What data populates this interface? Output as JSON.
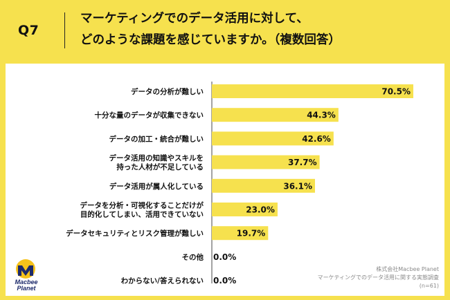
{
  "header": {
    "qnum": "Q7",
    "title_line1": "マーケティングでのデータ活用に対して、",
    "title_line2": "どのような課題を感じていますか。（複数回答）"
  },
  "chart_data": {
    "type": "bar",
    "orientation": "horizontal",
    "categories": [
      [
        "データの分析が難しい"
      ],
      [
        "十分な量のデータが収集できない"
      ],
      [
        "データの加工・統合が難しい"
      ],
      [
        "データ活用の知識やスキルを",
        "持った人材が不足している"
      ],
      [
        "データ活用が属人化している"
      ],
      [
        "データを分析・可視化することだけが",
        "目的化してしまい、活用できていない"
      ],
      [
        "データセキュリティとリスク管理が難しい"
      ],
      [
        "その他"
      ],
      [
        "わからない/答えられない"
      ]
    ],
    "values": [
      70.5,
      44.3,
      42.6,
      37.7,
      36.1,
      23.0,
      19.7,
      0.0,
      0.0
    ],
    "value_labels": [
      "70.5%",
      "44.3%",
      "42.6%",
      "37.7%",
      "36.1%",
      "23.0%",
      "19.7%",
      "0.0%",
      "0.0%"
    ],
    "xlim": [
      0,
      75
    ],
    "bar_color": "#f6e14e",
    "grid": false
  },
  "logo": {
    "line1": "Macbee",
    "line2": "Planet"
  },
  "footer": {
    "company": "株式会社Macbee Planet",
    "survey": "マーケティングでのデータ活用に関する実態調査",
    "n": "(n=61)"
  }
}
